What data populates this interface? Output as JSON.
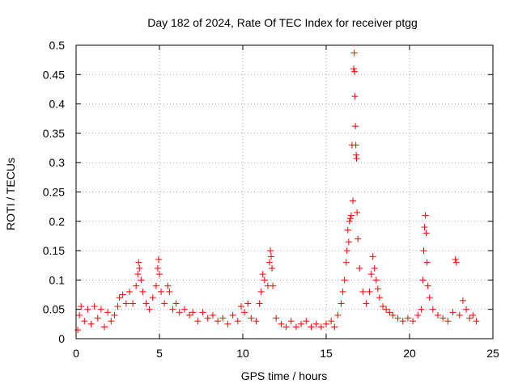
{
  "chart_data": {
    "type": "scatter",
    "title": "Day 182 of 2024, Rate Of TEC Index for receiver ptgg",
    "xlabel": "GPS time / hours",
    "ylabel": "ROTI / TECUs",
    "xlim": [
      0,
      25
    ],
    "ylim": [
      0,
      0.5
    ],
    "xticks": [
      0,
      5,
      10,
      15,
      20,
      25
    ],
    "yticks": [
      0,
      0.05,
      0.1,
      0.15,
      0.2,
      0.25,
      0.3,
      0.35,
      0.4,
      0.45,
      0.5
    ],
    "grid": true,
    "marker": "+",
    "color": "#ff0000",
    "series": [
      {
        "points": [
          [
            0.1,
            0.015
          ],
          [
            0.2,
            0.04
          ],
          [
            0.3,
            0.055
          ],
          [
            0.5,
            0.03
          ],
          [
            0.7,
            0.05
          ],
          [
            0.9,
            0.025
          ],
          [
            1.1,
            0.055
          ],
          [
            1.3,
            0.035
          ],
          [
            1.5,
            0.05
          ],
          [
            1.7,
            0.02
          ],
          [
            1.9,
            0.045
          ],
          [
            2.1,
            0.03
          ],
          [
            2.3,
            0.04
          ],
          [
            2.5,
            0.055
          ],
          [
            2.6,
            0.07
          ],
          [
            2.8,
            0.075
          ],
          [
            3.0,
            0.06
          ],
          [
            3.2,
            0.08
          ],
          [
            3.4,
            0.06
          ],
          [
            3.6,
            0.09
          ],
          [
            3.7,
            0.11
          ],
          [
            3.75,
            0.13
          ],
          [
            3.8,
            0.12
          ],
          [
            3.9,
            0.1
          ],
          [
            4.0,
            0.08
          ],
          [
            4.2,
            0.06
          ],
          [
            4.4,
            0.05
          ],
          [
            4.6,
            0.07
          ],
          [
            4.8,
            0.09
          ],
          [
            4.9,
            0.12
          ],
          [
            4.95,
            0.135
          ],
          [
            5.0,
            0.11
          ],
          [
            5.1,
            0.08
          ],
          [
            5.3,
            0.06
          ],
          [
            5.5,
            0.09
          ],
          [
            5.6,
            0.08
          ],
          [
            5.8,
            0.05
          ],
          [
            6.0,
            0.06
          ],
          [
            6.2,
            0.045
          ],
          [
            6.5,
            0.05
          ],
          [
            6.8,
            0.04
          ],
          [
            7.0,
            0.045
          ],
          [
            7.3,
            0.03
          ],
          [
            7.6,
            0.045
          ],
          [
            7.9,
            0.035
          ],
          [
            8.2,
            0.04
          ],
          [
            8.5,
            0.03
          ],
          [
            8.8,
            0.035
          ],
          [
            9.1,
            0.025
          ],
          [
            9.4,
            0.04
          ],
          [
            9.7,
            0.03
          ],
          [
            9.9,
            0.055
          ],
          [
            10.1,
            0.045
          ],
          [
            10.3,
            0.06
          ],
          [
            10.5,
            0.035
          ],
          [
            10.8,
            0.03
          ],
          [
            11.0,
            0.06
          ],
          [
            11.1,
            0.08
          ],
          [
            11.2,
            0.11
          ],
          [
            11.3,
            0.1
          ],
          [
            11.5,
            0.09
          ],
          [
            11.6,
            0.13
          ],
          [
            11.65,
            0.15
          ],
          [
            11.7,
            0.14
          ],
          [
            11.75,
            0.12
          ],
          [
            11.8,
            0.09
          ],
          [
            12.0,
            0.035
          ],
          [
            12.3,
            0.025
          ],
          [
            12.6,
            0.02
          ],
          [
            12.9,
            0.03
          ],
          [
            13.2,
            0.02
          ],
          [
            13.5,
            0.025
          ],
          [
            13.8,
            0.03
          ],
          [
            14.1,
            0.02
          ],
          [
            14.4,
            0.025
          ],
          [
            14.7,
            0.02
          ],
          [
            15.0,
            0.025
          ],
          [
            15.3,
            0.03
          ],
          [
            15.5,
            0.02
          ],
          [
            15.7,
            0.04
          ],
          [
            15.9,
            0.06
          ],
          [
            16.0,
            0.08
          ],
          [
            16.1,
            0.1
          ],
          [
            16.2,
            0.13
          ],
          [
            16.25,
            0.15
          ],
          [
            16.3,
            0.185
          ],
          [
            16.35,
            0.165
          ],
          [
            16.4,
            0.2
          ],
          [
            16.45,
            0.205
          ],
          [
            16.5,
            0.21
          ],
          [
            16.55,
            0.33
          ],
          [
            16.6,
            0.235
          ],
          [
            16.65,
            0.46
          ],
          [
            16.68,
            0.487
          ],
          [
            16.7,
            0.455
          ],
          [
            16.72,
            0.413
          ],
          [
            16.75,
            0.362
          ],
          [
            16.78,
            0.33
          ],
          [
            16.8,
            0.313
          ],
          [
            16.82,
            0.307
          ],
          [
            16.85,
            0.215
          ],
          [
            16.9,
            0.17
          ],
          [
            17.0,
            0.12
          ],
          [
            17.2,
            0.08
          ],
          [
            17.4,
            0.06
          ],
          [
            17.6,
            0.08
          ],
          [
            17.7,
            0.11
          ],
          [
            17.8,
            0.14
          ],
          [
            17.9,
            0.12
          ],
          [
            18.0,
            0.1
          ],
          [
            18.1,
            0.085
          ],
          [
            18.2,
            0.07
          ],
          [
            18.4,
            0.055
          ],
          [
            18.6,
            0.05
          ],
          [
            18.8,
            0.045
          ],
          [
            19.0,
            0.04
          ],
          [
            19.3,
            0.035
          ],
          [
            19.6,
            0.03
          ],
          [
            19.9,
            0.035
          ],
          [
            20.2,
            0.03
          ],
          [
            20.5,
            0.04
          ],
          [
            20.7,
            0.05
          ],
          [
            20.8,
            0.1
          ],
          [
            20.85,
            0.15
          ],
          [
            20.9,
            0.19
          ],
          [
            20.95,
            0.21
          ],
          [
            21.0,
            0.18
          ],
          [
            21.05,
            0.13
          ],
          [
            21.1,
            0.09
          ],
          [
            21.2,
            0.07
          ],
          [
            21.4,
            0.05
          ],
          [
            21.7,
            0.04
          ],
          [
            22.0,
            0.035
          ],
          [
            22.3,
            0.03
          ],
          [
            22.6,
            0.045
          ],
          [
            22.75,
            0.135
          ],
          [
            22.8,
            0.13
          ],
          [
            23.0,
            0.04
          ],
          [
            23.2,
            0.065
          ],
          [
            23.4,
            0.05
          ],
          [
            23.6,
            0.035
          ],
          [
            23.8,
            0.04
          ],
          [
            24.0,
            0.03
          ]
        ]
      }
    ]
  }
}
